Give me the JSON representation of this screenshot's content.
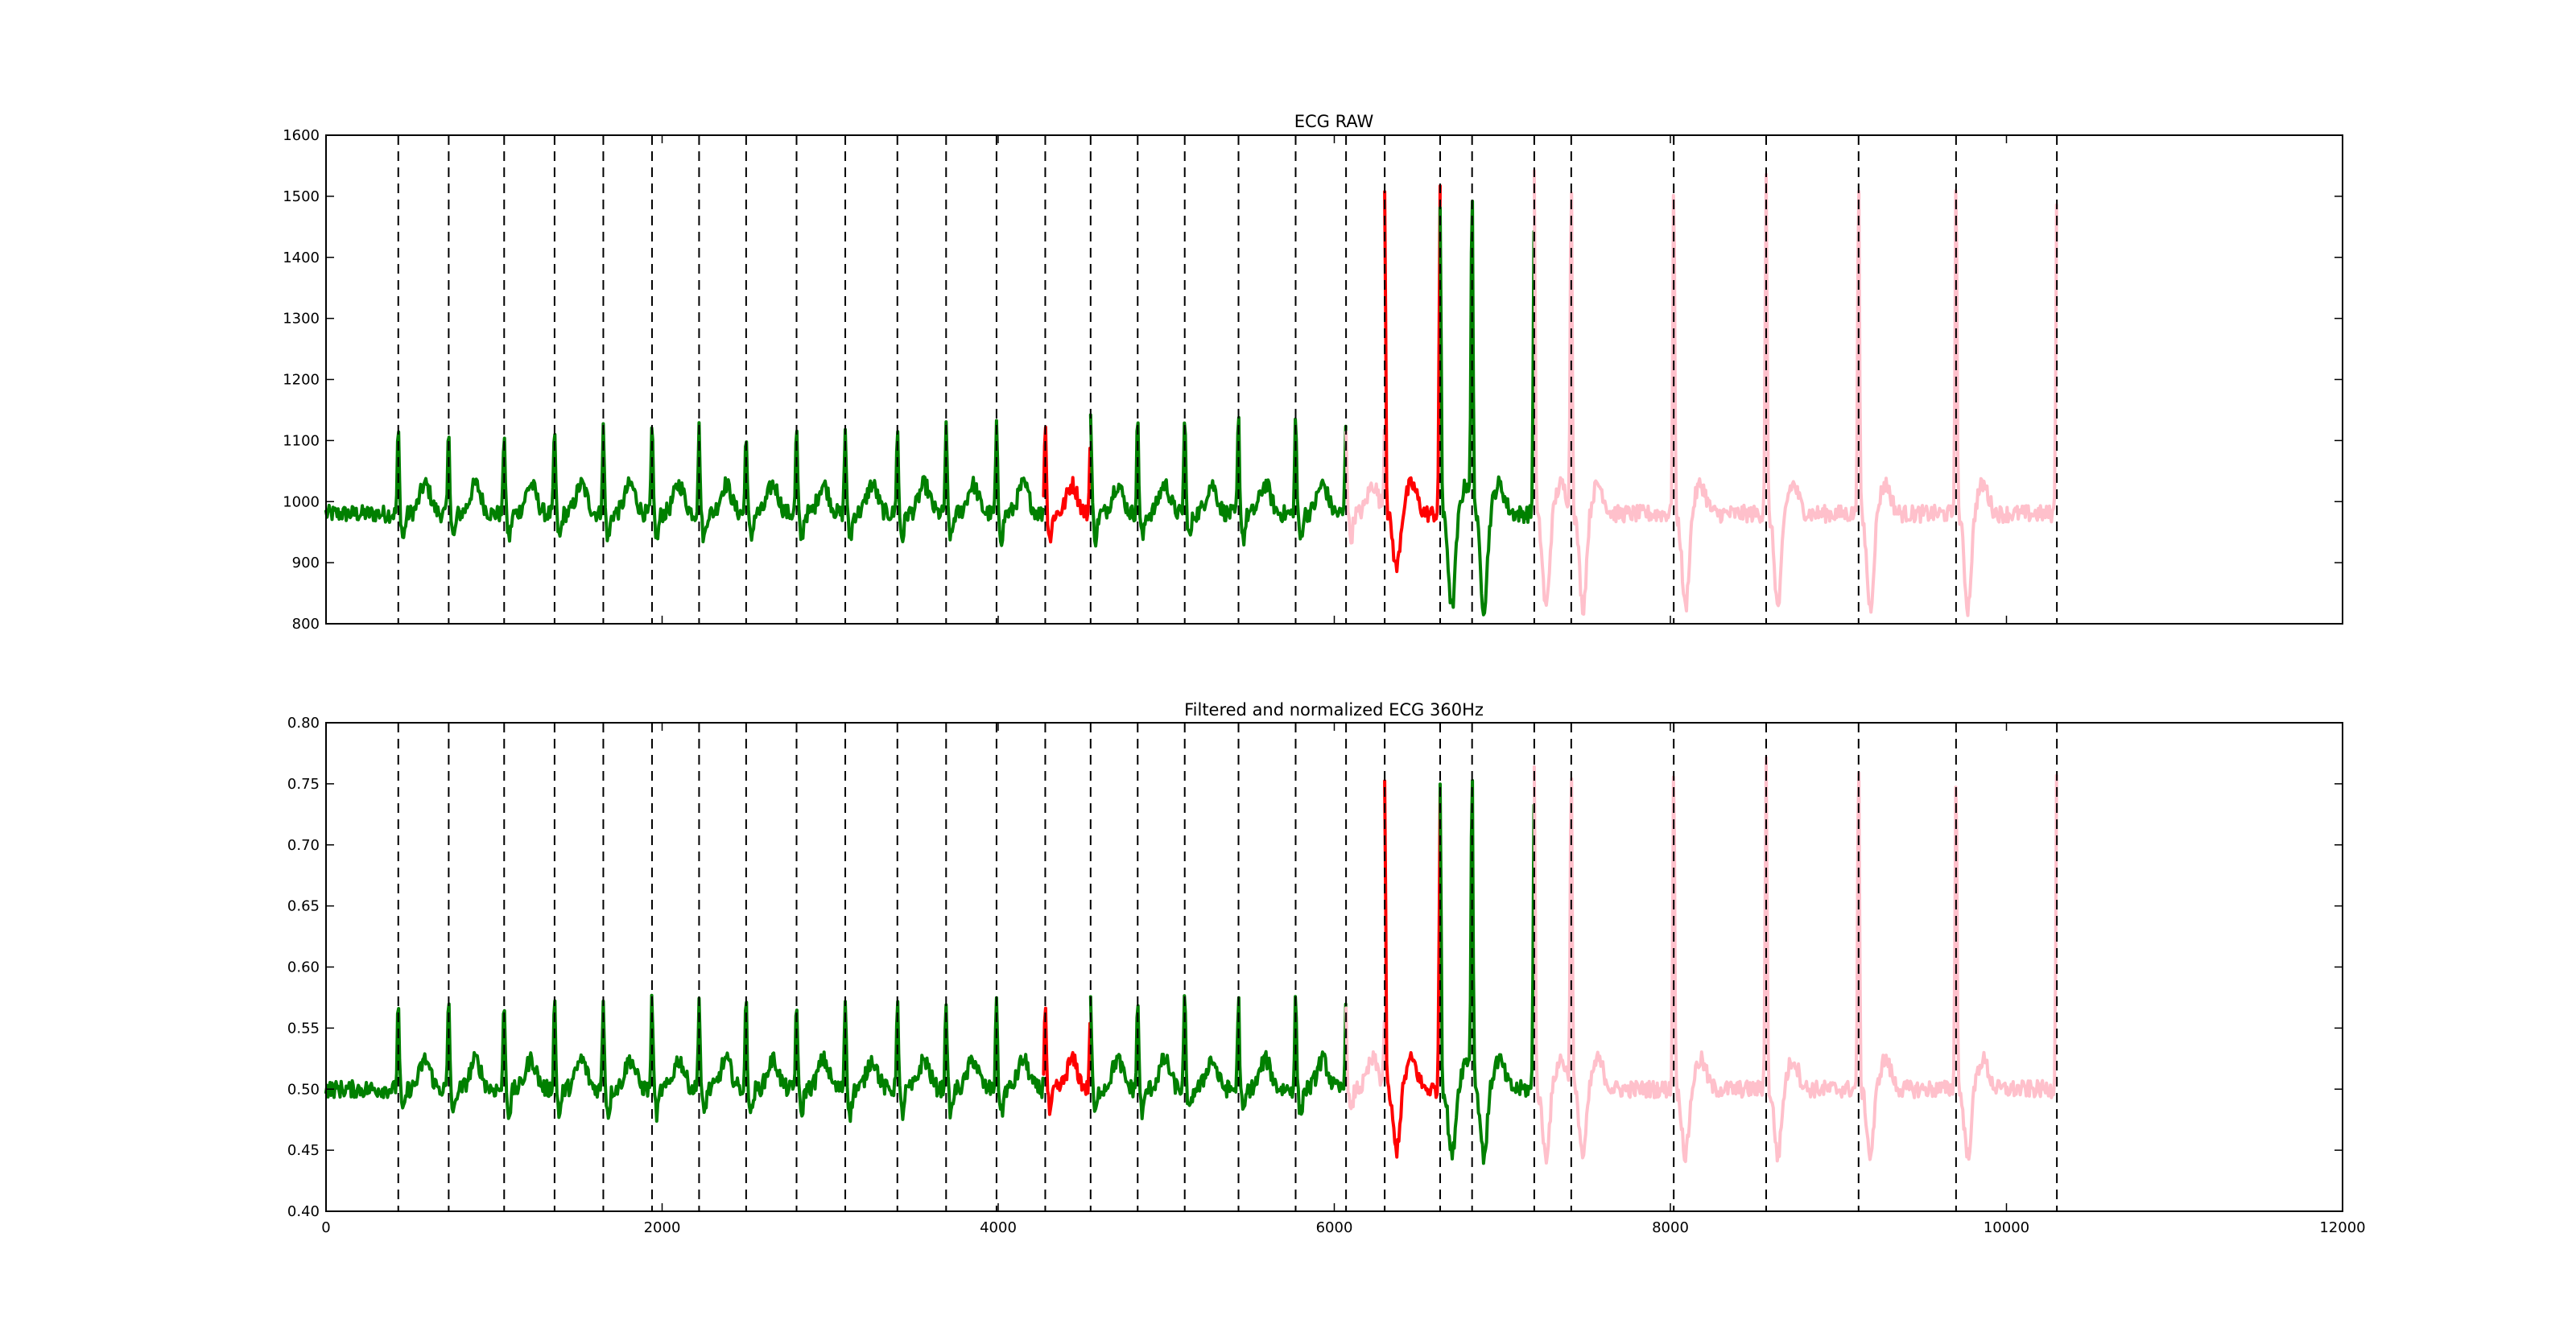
{
  "chart_data": [
    {
      "type": "line",
      "title": "ECG RAW",
      "xlim": [
        0,
        12000
      ],
      "ylim": [
        800,
        1600
      ],
      "x_ticks": [],
      "y_ticks": [
        800,
        900,
        1000,
        1100,
        1200,
        1300,
        1400,
        1500,
        1600
      ],
      "beat_markers": [
        430,
        730,
        1060,
        1360,
        1650,
        1940,
        2220,
        2500,
        2800,
        3090,
        3400,
        3690,
        3990,
        4280,
        4550,
        4830,
        5110,
        5430,
        5770,
        6070,
        6300,
        6630,
        6820,
        7190,
        7410,
        8020,
        8570,
        9120,
        9700,
        10300
      ],
      "baseline": 980,
      "segment_colors": {
        "normal": "#008000",
        "abnormal": "#ff0000",
        "unlabeled": "#ffc0cb"
      },
      "segments": [
        {
          "label": "normal",
          "x_range": [
            0,
            4270
          ],
          "peak": 1120
        },
        {
          "label": "abnormal",
          "x_range": [
            4270,
            4550
          ],
          "peak": 1135
        },
        {
          "label": "normal",
          "x_range": [
            4550,
            6070
          ],
          "peak": 1140
        },
        {
          "label": "unlabeled",
          "x_range": [
            6070,
            6300
          ],
          "peak": 1120
        },
        {
          "label": "abnormal",
          "x_range": [
            6300,
            6630
          ],
          "peak": 1515,
          "trough": 890
        },
        {
          "label": "normal",
          "x_range": [
            6630,
            7190
          ],
          "peak": 1485,
          "trough": 825
        },
        {
          "label": "unlabeled",
          "x_range": [
            7190,
            10300
          ],
          "peak": 1530,
          "trough": 825
        }
      ]
    },
    {
      "type": "line",
      "title": "Filtered and normalized ECG 360Hz",
      "xlim": [
        0,
        12000
      ],
      "ylim": [
        0.4,
        0.8
      ],
      "x_ticks": [
        0,
        2000,
        4000,
        6000,
        8000,
        10000,
        12000
      ],
      "y_ticks": [
        0.4,
        0.45,
        0.5,
        0.55,
        0.6,
        0.65,
        0.7,
        0.75,
        0.8
      ],
      "beat_markers": [
        430,
        730,
        1060,
        1360,
        1650,
        1940,
        2220,
        2500,
        2800,
        3090,
        3400,
        3690,
        3990,
        4280,
        4550,
        4830,
        5110,
        5430,
        5770,
        6070,
        6300,
        6630,
        6820,
        7190,
        7410,
        8020,
        8570,
        9120,
        9700,
        10300
      ],
      "baseline": 0.5,
      "segment_colors": {
        "normal": "#008000",
        "abnormal": "#ff0000",
        "unlabeled": "#ffc0cb"
      },
      "segments": [
        {
          "label": "normal",
          "x_range": [
            0,
            4270
          ],
          "peak": 0.575
        },
        {
          "label": "abnormal",
          "x_range": [
            4270,
            4550
          ],
          "peak": 0.575
        },
        {
          "label": "normal",
          "x_range": [
            4550,
            6070
          ],
          "peak": 0.575
        },
        {
          "label": "unlabeled",
          "x_range": [
            6070,
            6300
          ],
          "peak": 0.56
        },
        {
          "label": "abnormal",
          "x_range": [
            6300,
            6630
          ],
          "peak": 0.745,
          "trough": 0.45
        },
        {
          "label": "normal",
          "x_range": [
            6630,
            7190
          ],
          "peak": 0.75,
          "trough": 0.445
        },
        {
          "label": "unlabeled",
          "x_range": [
            7190,
            10300
          ],
          "peak": 0.77,
          "trough": 0.445
        }
      ]
    }
  ]
}
